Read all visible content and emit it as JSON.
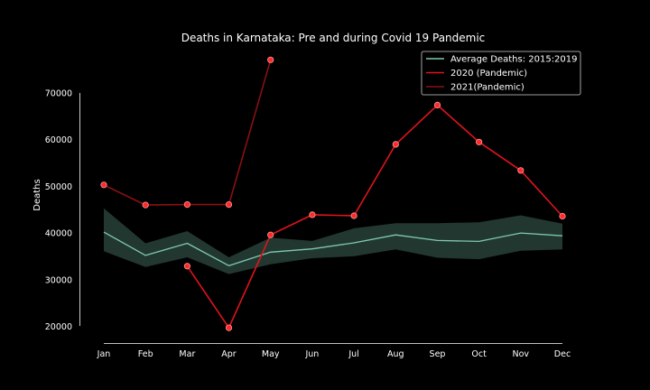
{
  "chart_data": {
    "type": "line",
    "title": "Deaths in Karnataka: Pre and during Covid 19 Pandemic",
    "xlabel": "",
    "ylabel": "Deaths",
    "categories": [
      "Jan",
      "Feb",
      "Mar",
      "Apr",
      "May",
      "Jun",
      "Jul",
      "Aug",
      "Sep",
      "Oct",
      "Nov",
      "Dec"
    ],
    "yticks": [
      20000,
      30000,
      40000,
      50000,
      60000,
      70000
    ],
    "ylim": [
      19000,
      78000
    ],
    "grid": false,
    "legend_position": "top-right",
    "series": [
      {
        "name": "Average Deaths: 2015:2019",
        "color": "#7fc8b4",
        "values": [
          40200,
          35200,
          37800,
          33000,
          35900,
          36600,
          37900,
          39600,
          38400,
          38200,
          40000,
          39400
        ],
        "band_upper": [
          45300,
          37800,
          40400,
          34800,
          39000,
          38300,
          41000,
          42100,
          42100,
          42300,
          43800,
          42000
        ],
        "band_lower": [
          36100,
          32700,
          34800,
          31200,
          33300,
          34600,
          35000,
          36500,
          34700,
          34400,
          36200,
          36500
        ]
      },
      {
        "name": "2020 (Pandemic)",
        "color": "#e0141c",
        "values": [
          null,
          null,
          32900,
          19700,
          39600,
          43900,
          43700,
          59000,
          67400,
          59500,
          53400,
          43600
        ]
      },
      {
        "name": "2021(Pandemic)",
        "color": "#8a1012",
        "values": [
          50300,
          46000,
          46100,
          46100,
          77100,
          null,
          null,
          null,
          null,
          null,
          null,
          null
        ]
      }
    ]
  }
}
